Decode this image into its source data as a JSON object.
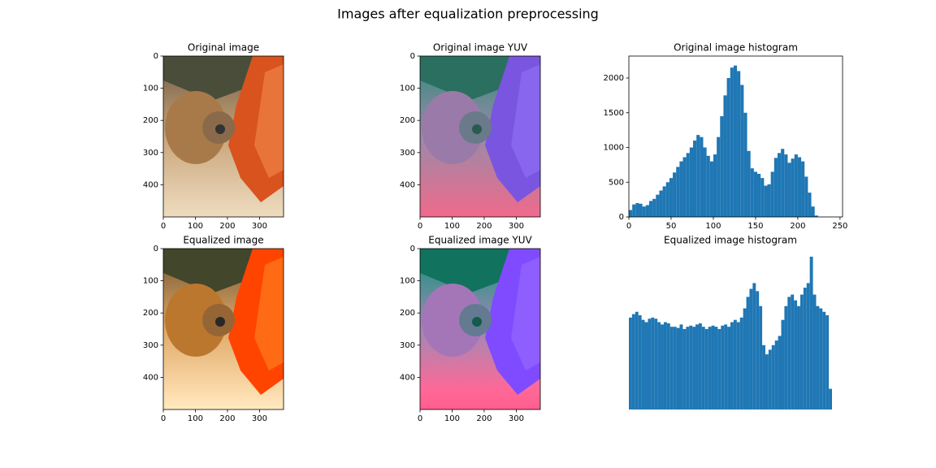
{
  "title": "Images after equalization preprocessing",
  "chart_data": [
    {
      "type": "image",
      "title": "Original image",
      "xlim": [
        0,
        375
      ],
      "ylim": [
        500,
        0
      ],
      "xticks": [
        0,
        100,
        200,
        300
      ],
      "yticks": [
        0,
        100,
        200,
        300,
        400
      ]
    },
    {
      "type": "image",
      "title": "Original image YUV",
      "xlim": [
        0,
        375
      ],
      "ylim": [
        500,
        0
      ],
      "xticks": [
        0,
        100,
        200,
        300
      ],
      "yticks": [
        0,
        100,
        200,
        300,
        400
      ]
    },
    {
      "type": "histogram",
      "title": "Original image histogram",
      "color": "#1f77b4",
      "xlim": [
        0,
        253
      ],
      "ylim": [
        0,
        2316
      ],
      "xticks": [
        0,
        50,
        100,
        150,
        200,
        250
      ],
      "yticks": [
        0,
        500,
        1000,
        1500,
        2000
      ],
      "bins": [
        0,
        4,
        8,
        12,
        16,
        20,
        24,
        28,
        32,
        36,
        40,
        44,
        48,
        52,
        56,
        60,
        64,
        68,
        72,
        76,
        80,
        84,
        88,
        92,
        96,
        100,
        104,
        108,
        112,
        116,
        120,
        124,
        128,
        132,
        136,
        140,
        144,
        148,
        152,
        156,
        160,
        164,
        168,
        172,
        176,
        180,
        184,
        188,
        192,
        196,
        200,
        204,
        208,
        212,
        216,
        220,
        224
      ],
      "counts": [
        100,
        180,
        200,
        190,
        150,
        170,
        230,
        260,
        320,
        380,
        440,
        500,
        560,
        640,
        720,
        800,
        860,
        920,
        1000,
        1100,
        1180,
        1150,
        1000,
        880,
        800,
        900,
        1150,
        1450,
        1750,
        2000,
        2150,
        2180,
        2100,
        1900,
        1500,
        950,
        700,
        650,
        620,
        560,
        450,
        470,
        650,
        850,
        920,
        980,
        900,
        780,
        840,
        900,
        860,
        800,
        580,
        350,
        150,
        20
      ]
    },
    {
      "type": "image",
      "title": "Equalized image",
      "xlim": [
        0,
        375
      ],
      "ylim": [
        500,
        0
      ],
      "xticks": [
        0,
        100,
        200,
        300
      ],
      "yticks": [
        0,
        100,
        200,
        300,
        400
      ]
    },
    {
      "type": "image",
      "title": "Equalized image YUV",
      "xlim": [
        0,
        375
      ],
      "ylim": [
        500,
        0
      ],
      "xticks": [
        0,
        100,
        200,
        300
      ],
      "yticks": [
        0,
        100,
        200,
        300,
        400
      ]
    },
    {
      "type": "histogram",
      "title": "Equalized image histogram",
      "color": "#1f77b4",
      "axes_visible": false,
      "xlim": [
        0,
        256
      ],
      "ylim": [
        0,
        1400
      ],
      "bins": [
        0,
        4,
        8,
        12,
        16,
        20,
        24,
        28,
        32,
        36,
        40,
        44,
        48,
        52,
        56,
        60,
        64,
        68,
        72,
        76,
        80,
        84,
        88,
        92,
        96,
        100,
        104,
        108,
        112,
        116,
        120,
        124,
        128,
        132,
        136,
        140,
        144,
        148,
        152,
        156,
        160,
        164,
        168,
        172,
        176,
        180,
        184,
        188,
        192,
        196,
        200,
        204,
        208,
        212,
        216,
        220,
        224,
        228,
        232,
        236,
        240,
        244,
        248,
        252,
        256
      ],
      "counts": [
        800,
        830,
        850,
        820,
        780,
        760,
        790,
        800,
        790,
        760,
        740,
        760,
        750,
        720,
        720,
        710,
        740,
        700,
        720,
        730,
        720,
        740,
        750,
        720,
        700,
        720,
        730,
        720,
        700,
        730,
        740,
        720,
        760,
        780,
        760,
        800,
        880,
        980,
        1050,
        1100,
        1030,
        900,
        560,
        480,
        520,
        560,
        600,
        640,
        780,
        900,
        980,
        1000,
        950,
        900,
        1000,
        1060,
        1100,
        1330,
        1000,
        900,
        880,
        850,
        820,
        180
      ]
    }
  ]
}
